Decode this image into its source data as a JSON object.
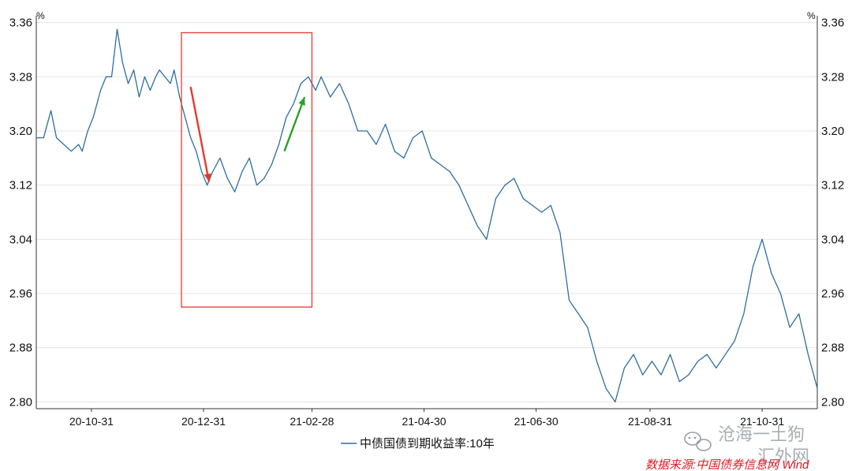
{
  "chart_data": {
    "type": "line",
    "title": "",
    "xlabel": "",
    "ylabel": "",
    "unit_left": "%",
    "unit_right": "%",
    "ylim": [
      2.79,
      3.37
    ],
    "y_ticks": [
      "3.36",
      "3.28",
      "3.20",
      "3.12",
      "3.04",
      "2.96",
      "2.88",
      "2.80"
    ],
    "x_ticks": [
      "20-10-31",
      "20-12-31",
      "21-02-28",
      "21-04-30",
      "21-06-30",
      "21-08-31",
      "21-10-31"
    ],
    "x_tick_days": [
      30,
      91,
      150,
      211,
      272,
      334,
      395
    ],
    "xlim_days": [
      0,
      425
    ],
    "grid": "horizontal",
    "legend_position": "bottom-center",
    "series": [
      {
        "name": "中债国债到期收益率:10年",
        "color": "#2e6e9e",
        "x_days": [
          0,
          4,
          8,
          11,
          15,
          19,
          23,
          25,
          28,
          31,
          33,
          35,
          38,
          41,
          44,
          47,
          50,
          53,
          56,
          59,
          62,
          65,
          67,
          70,
          73,
          75,
          78,
          81,
          84,
          87,
          90,
          93,
          96,
          100,
          104,
          108,
          112,
          116,
          120,
          124,
          128,
          132,
          136,
          140,
          144,
          148,
          152,
          155,
          160,
          165,
          170,
          175,
          180,
          185,
          190,
          195,
          200,
          205,
          210,
          215,
          220,
          225,
          230,
          235,
          240,
          245,
          250,
          255,
          260,
          265,
          270,
          275,
          280,
          285,
          290,
          295,
          300,
          305,
          310,
          315,
          320,
          325,
          330,
          335,
          340,
          345,
          350,
          355,
          360,
          365,
          370,
          375,
          380,
          385,
          390,
          395,
          400,
          405,
          410,
          415,
          420,
          425
        ],
        "values": [
          3.19,
          3.19,
          3.23,
          3.19,
          3.18,
          3.17,
          3.18,
          3.17,
          3.2,
          3.22,
          3.24,
          3.26,
          3.28,
          3.28,
          3.35,
          3.3,
          3.27,
          3.29,
          3.25,
          3.28,
          3.26,
          3.28,
          3.29,
          3.28,
          3.27,
          3.29,
          3.25,
          3.22,
          3.19,
          3.17,
          3.14,
          3.12,
          3.14,
          3.16,
          3.13,
          3.11,
          3.14,
          3.16,
          3.12,
          3.13,
          3.15,
          3.18,
          3.22,
          3.24,
          3.27,
          3.28,
          3.26,
          3.28,
          3.25,
          3.27,
          3.24,
          3.2,
          3.2,
          3.18,
          3.21,
          3.17,
          3.16,
          3.19,
          3.2,
          3.16,
          3.15,
          3.14,
          3.12,
          3.09,
          3.06,
          3.04,
          3.1,
          3.12,
          3.13,
          3.1,
          3.09,
          3.08,
          3.09,
          3.05,
          2.95,
          2.93,
          2.91,
          2.86,
          2.82,
          2.8,
          2.85,
          2.87,
          2.84,
          2.86,
          2.84,
          2.87,
          2.83,
          2.84,
          2.86,
          2.87,
          2.85,
          2.87,
          2.89,
          2.93,
          3.0,
          3.04,
          2.99,
          2.96,
          2.91,
          2.93,
          2.87,
          2.82
        ]
      }
    ],
    "annotations": {
      "box": {
        "x_days": [
          79,
          150
        ],
        "y": [
          2.94,
          3.345
        ],
        "color": "#e8392f"
      },
      "arrows": [
        {
          "from_days": 84,
          "from_y": 3.265,
          "to_days": 94,
          "to_y": 3.125,
          "color": "#e8392f"
        },
        {
          "from_days": 135,
          "from_y": 3.17,
          "to_days": 146,
          "to_y": 3.25,
          "color": "#2aa12a"
        }
      ]
    }
  },
  "source_text": "数据来源:中国债券信息网 Wind",
  "watermark": {
    "account_name": "沧海一土狗",
    "site_name": "汇外网"
  },
  "colors": {
    "series_line": "#2e6e9e",
    "grid": "#e4e4e4",
    "axis": "#333333",
    "source_text": "#e01b24"
  }
}
